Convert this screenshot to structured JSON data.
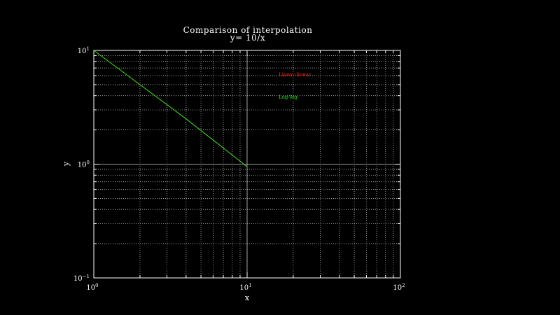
{
  "chart_data": {
    "type": "line",
    "title": "Comparison of interpolation",
    "subtitle": "y= 10/x",
    "xlabel": "x",
    "ylabel": "y",
    "xscale": "log",
    "yscale": "log",
    "xlim": [
      1,
      100
    ],
    "ylim": [
      0.1,
      10
    ],
    "grid": true,
    "background": "#000000",
    "axis_color": "#ffffff",
    "x_ticks": [
      {
        "value": 1,
        "base": "10",
        "exp": "0"
      },
      {
        "value": 10,
        "base": "10",
        "exp": "1"
      },
      {
        "value": 100,
        "base": "10",
        "exp": "2"
      }
    ],
    "y_ticks": [
      {
        "value": 0.1,
        "base": "10",
        "exp": "−1"
      },
      {
        "value": 1,
        "base": "10",
        "exp": "0"
      },
      {
        "value": 10,
        "base": "10",
        "exp": "1"
      }
    ],
    "legend_placement": "upper-right inside plot",
    "series": [
      {
        "name": "Linear-linear",
        "color": "#ff2020",
        "points": [
          [
            1,
            10
          ],
          [
            2,
            5
          ],
          [
            4,
            2.5
          ],
          [
            10,
            0.95
          ]
        ]
      },
      {
        "name": "Log-log",
        "color": "#20e020",
        "points": [
          [
            1,
            10
          ],
          [
            2,
            5
          ],
          [
            4,
            2.5
          ],
          [
            10,
            0.95
          ]
        ]
      }
    ]
  }
}
